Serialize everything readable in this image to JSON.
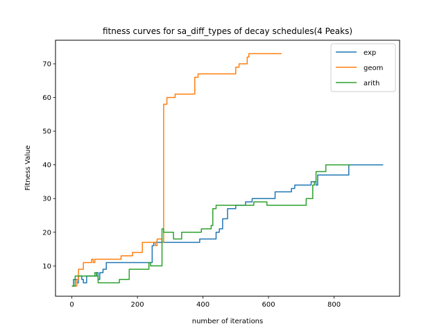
{
  "chart_data": {
    "type": "line",
    "title": "fitness curves for sa_diff_types of decay schedules(4 Peaks)",
    "xlabel": "number of iterations",
    "ylabel": "Fitness Value",
    "xlim": [
      -50,
      1000
    ],
    "ylim": [
      1,
      77
    ],
    "xticks": [
      0,
      200,
      400,
      600,
      800
    ],
    "yticks": [
      10,
      20,
      30,
      40,
      50,
      60,
      70
    ],
    "grid": false,
    "legend_position": "top-right",
    "series": [
      {
        "name": "exp",
        "color": "#1f77b4",
        "points": [
          [
            0,
            4
          ],
          [
            5,
            4
          ],
          [
            5,
            6
          ],
          [
            15,
            6
          ],
          [
            15,
            5
          ],
          [
            20,
            5
          ],
          [
            20,
            7
          ],
          [
            30,
            7
          ],
          [
            30,
            6
          ],
          [
            35,
            6
          ],
          [
            35,
            5
          ],
          [
            45,
            5
          ],
          [
            45,
            7
          ],
          [
            75,
            7
          ],
          [
            75,
            8
          ],
          [
            80,
            8
          ],
          [
            80,
            6
          ],
          [
            85,
            6
          ],
          [
            85,
            8
          ],
          [
            95,
            8
          ],
          [
            95,
            9
          ],
          [
            105,
            9
          ],
          [
            105,
            11
          ],
          [
            245,
            11
          ],
          [
            245,
            16
          ],
          [
            250,
            16
          ],
          [
            250,
            17
          ],
          [
            390,
            17
          ],
          [
            390,
            18
          ],
          [
            440,
            18
          ],
          [
            440,
            20
          ],
          [
            450,
            20
          ],
          [
            450,
            21
          ],
          [
            460,
            21
          ],
          [
            460,
            24
          ],
          [
            475,
            24
          ],
          [
            475,
            27
          ],
          [
            500,
            27
          ],
          [
            500,
            28
          ],
          [
            530,
            28
          ],
          [
            530,
            29
          ],
          [
            550,
            29
          ],
          [
            550,
            30
          ],
          [
            620,
            30
          ],
          [
            620,
            32
          ],
          [
            670,
            32
          ],
          [
            670,
            33
          ],
          [
            680,
            33
          ],
          [
            680,
            34
          ],
          [
            730,
            34
          ],
          [
            730,
            35
          ],
          [
            745,
            35
          ],
          [
            745,
            34
          ],
          [
            750,
            34
          ],
          [
            750,
            37
          ],
          [
            845,
            37
          ],
          [
            845,
            40
          ],
          [
            950,
            40
          ]
        ]
      },
      {
        "name": "geom",
        "color": "#ff7f0e",
        "points": [
          [
            0,
            4
          ],
          [
            15,
            4
          ],
          [
            15,
            6
          ],
          [
            20,
            6
          ],
          [
            20,
            9
          ],
          [
            35,
            9
          ],
          [
            35,
            11
          ],
          [
            60,
            11
          ],
          [
            60,
            12
          ],
          [
            65,
            12
          ],
          [
            65,
            11
          ],
          [
            70,
            11
          ],
          [
            70,
            12
          ],
          [
            150,
            12
          ],
          [
            150,
            13
          ],
          [
            185,
            13
          ],
          [
            185,
            14
          ],
          [
            215,
            14
          ],
          [
            215,
            17
          ],
          [
            255,
            17
          ],
          [
            255,
            16
          ],
          [
            260,
            16
          ],
          [
            260,
            18
          ],
          [
            275,
            18
          ],
          [
            275,
            17
          ],
          [
            280,
            17
          ],
          [
            280,
            58
          ],
          [
            290,
            58
          ],
          [
            290,
            60
          ],
          [
            315,
            60
          ],
          [
            315,
            61
          ],
          [
            375,
            61
          ],
          [
            375,
            66
          ],
          [
            385,
            66
          ],
          [
            385,
            67
          ],
          [
            500,
            67
          ],
          [
            500,
            69
          ],
          [
            510,
            69
          ],
          [
            510,
            70
          ],
          [
            535,
            70
          ],
          [
            535,
            72
          ],
          [
            540,
            72
          ],
          [
            540,
            73
          ],
          [
            640,
            73
          ]
        ]
      },
      {
        "name": "arith",
        "color": "#2ca02c",
        "points": [
          [
            0,
            4
          ],
          [
            10,
            4
          ],
          [
            10,
            7
          ],
          [
            70,
            7
          ],
          [
            70,
            8
          ],
          [
            75,
            8
          ],
          [
            75,
            7
          ],
          [
            80,
            7
          ],
          [
            80,
            5
          ],
          [
            145,
            5
          ],
          [
            145,
            6
          ],
          [
            175,
            6
          ],
          [
            175,
            9
          ],
          [
            235,
            9
          ],
          [
            235,
            11
          ],
          [
            240,
            11
          ],
          [
            240,
            10
          ],
          [
            275,
            10
          ],
          [
            275,
            21
          ],
          [
            280,
            21
          ],
          [
            280,
            20
          ],
          [
            310,
            20
          ],
          [
            310,
            18
          ],
          [
            335,
            18
          ],
          [
            335,
            20
          ],
          [
            395,
            20
          ],
          [
            395,
            21
          ],
          [
            425,
            21
          ],
          [
            425,
            22
          ],
          [
            430,
            22
          ],
          [
            430,
            27
          ],
          [
            440,
            27
          ],
          [
            440,
            28
          ],
          [
            555,
            28
          ],
          [
            555,
            29
          ],
          [
            595,
            29
          ],
          [
            595,
            28
          ],
          [
            715,
            28
          ],
          [
            715,
            30
          ],
          [
            735,
            30
          ],
          [
            735,
            34
          ],
          [
            740,
            34
          ],
          [
            740,
            35
          ],
          [
            745,
            35
          ],
          [
            745,
            38
          ],
          [
            775,
            38
          ],
          [
            775,
            40
          ],
          [
            850,
            40
          ]
        ]
      }
    ]
  }
}
